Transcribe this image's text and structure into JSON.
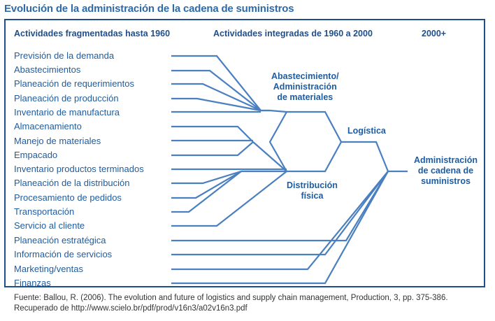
{
  "title": "Evolución de la administración de la cadena de suministros",
  "headers": {
    "fragmented": "Actividades fragmentadas hasta 1960",
    "integrated": "Actividades integradas de 1960 a 2000",
    "future": "2000+"
  },
  "activities": [
    "Previsión de la demanda",
    "Abastecimientos",
    "Planeación de requerimientos",
    "Planeación de producción",
    "Inventario de manufactura",
    "Almacenamiento",
    "Manejo de materiales",
    "Empacado",
    "Inventario productos terminados",
    "Planeación de la distribución",
    "Procesamiento de pedidos",
    "Transportación",
    "Servicio al cliente",
    "Planeación estratégica",
    "Información de servicios",
    "Marketing/ventas",
    "Finanzas"
  ],
  "nodes": {
    "materials": {
      "line1": "Abastecimiento/",
      "line2": "Administración",
      "line3": "de materiales"
    },
    "physical": {
      "line1": "Distribución",
      "line2": "física"
    },
    "logistics": {
      "line1": "Logística"
    },
    "scm": {
      "line1": "Administración",
      "line2": "de cadena de",
      "line3": "suministros"
    }
  },
  "source": {
    "text": "Fuente: Ballou, R. (2006). The evolution and future of logistics and supply chain management, Production, 3, pp. 375-386. Recuperado de http://www.scielo.br/pdf/prod/v16n3/a02v16n3.pdf"
  }
}
